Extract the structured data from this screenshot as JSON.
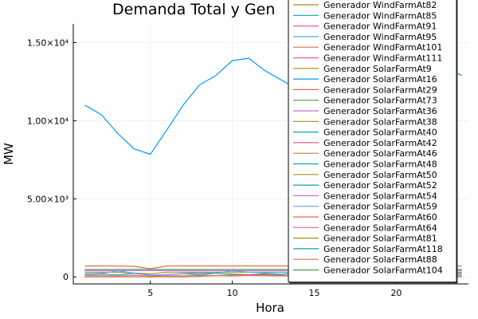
{
  "chart_data": {
    "type": "line",
    "title": "Demanda Total y Gen",
    "xlabel": "Hora",
    "ylabel": "MW",
    "xlim": [
      0.3,
      24.4
    ],
    "ylim": [
      -450,
      16200
    ],
    "x_ticks": [
      5,
      10,
      15,
      20
    ],
    "x_tick_labels": [
      "5",
      "10",
      "15",
      "20"
    ],
    "y_ticks": [
      0,
      5000,
      10000,
      15000
    ],
    "y_tick_labels": [
      "0",
      "5.00×10³",
      "1.00×10⁴",
      "1.50×10⁴"
    ],
    "grid": true,
    "legend_position": "top-right",
    "series": [
      {
        "color": "#009af9",
        "x": [
          1,
          2,
          3,
          4,
          5,
          6,
          7,
          8,
          9,
          10,
          11,
          12,
          13,
          14,
          15,
          16,
          17,
          18,
          19,
          20,
          21,
          22,
          23,
          24
        ],
        "y": [
          11000,
          10400,
          9200,
          8200,
          7850,
          9400,
          11000,
          12300,
          12900,
          13850,
          14000,
          13200,
          12600,
          12000,
          12400,
          12700,
          13000,
          13300,
          13500,
          13700,
          14000,
          13600,
          13300,
          12900
        ]
      },
      {
        "color": "#e26f46",
        "x": [
          1,
          2,
          3,
          4,
          5,
          6,
          7,
          8,
          9,
          10,
          11,
          12,
          13,
          14,
          15,
          16,
          17,
          18,
          19,
          20,
          21,
          22,
          23,
          24
        ],
        "y": [
          700,
          700,
          700,
          680,
          520,
          700,
          700,
          700,
          700,
          700,
          700,
          700,
          700,
          700,
          700,
          700,
          700,
          700,
          700,
          700,
          700,
          700,
          700,
          700
        ]
      },
      {
        "color": "#3da44d",
        "x": [
          1,
          2,
          3,
          4,
          5,
          6,
          7,
          8,
          9,
          10,
          11,
          12,
          13,
          14,
          15,
          16,
          17,
          18,
          19,
          20,
          21,
          22,
          23,
          24
        ],
        "y": [
          480,
          480,
          480,
          480,
          480,
          480,
          480,
          480,
          480,
          480,
          480,
          480,
          480,
          480,
          480,
          480,
          480,
          480,
          480,
          480,
          480,
          480,
          480,
          480
        ]
      },
      {
        "color": "#c271d2",
        "x": [
          1,
          2,
          3,
          4,
          5,
          6,
          7,
          8,
          9,
          10,
          11,
          12,
          13,
          14,
          15,
          16,
          17,
          18,
          19,
          20,
          21,
          22,
          23,
          24
        ],
        "y": [
          400,
          400,
          400,
          400,
          400,
          400,
          400,
          400,
          400,
          400,
          400,
          400,
          400,
          400,
          400,
          400,
          400,
          400,
          400,
          400,
          400,
          400,
          400,
          400
        ]
      },
      {
        "color": "#ac8d18",
        "x": [
          1,
          2,
          3,
          4,
          5,
          6,
          7,
          8,
          9,
          10,
          11,
          12,
          13,
          14,
          15,
          16,
          17,
          18,
          19,
          20,
          21,
          22,
          23,
          24
        ],
        "y": [
          300,
          300,
          300,
          250,
          200,
          300,
          300,
          300,
          300,
          300,
          300,
          300,
          300,
          300,
          300,
          300,
          300,
          300,
          300,
          300,
          300,
          300,
          300,
          300
        ]
      },
      {
        "color": "#00a9ad",
        "x": [
          1,
          2,
          3,
          4,
          5,
          6,
          7,
          8,
          9,
          10,
          11,
          12,
          13,
          14,
          15,
          16,
          17,
          18,
          19,
          20,
          21,
          22,
          23,
          24
        ],
        "y": [
          150,
          180,
          120,
          220,
          100,
          140,
          200,
          160,
          230,
          180,
          150,
          200,
          170,
          220,
          190,
          160,
          200,
          180,
          150,
          200,
          170,
          190,
          160,
          180
        ]
      },
      {
        "color": "#ed5d92",
        "x": [
          1,
          2,
          3,
          4,
          5,
          6,
          7,
          8,
          9,
          10,
          11,
          12,
          13,
          14,
          15,
          16,
          17,
          18,
          19,
          20,
          21,
          22,
          23,
          24
        ],
        "y": [
          60,
          80,
          50,
          90,
          40,
          70,
          60,
          100,
          80,
          60,
          90,
          70,
          60,
          80,
          50,
          70,
          90,
          60,
          80,
          70,
          60,
          90,
          70,
          80
        ]
      },
      {
        "color": "#c68225",
        "x": [
          1,
          2,
          3,
          4,
          5,
          6,
          7,
          8,
          9,
          10,
          11,
          12,
          13,
          14,
          15,
          16,
          17,
          18,
          19,
          20,
          21,
          22,
          23,
          24
        ],
        "y": [
          0,
          0,
          0,
          0,
          0,
          0,
          0,
          30,
          80,
          120,
          140,
          130,
          100,
          60,
          20,
          0,
          0,
          0,
          0,
          0,
          0,
          0,
          0,
          0
        ]
      },
      {
        "color": "#6b9ce8",
        "x": [
          1,
          2,
          3,
          4,
          5,
          6,
          7,
          8,
          9,
          10,
          11,
          12,
          13,
          14,
          15,
          16,
          17,
          18,
          19,
          20,
          21,
          22,
          23,
          24
        ],
        "y": [
          200,
          220,
          380,
          240,
          120,
          150,
          210,
          260,
          250,
          380,
          300,
          260,
          300,
          240,
          220,
          260,
          300,
          260,
          220,
          260,
          240,
          250,
          230,
          260
        ]
      }
    ],
    "legend": [
      {
        "label": "Generador WindFarmAt82",
        "color": "#ac8d18"
      },
      {
        "label": "Generador WindFarmAt85",
        "color": "#00a9ad"
      },
      {
        "label": "Generador WindFarmAt91",
        "color": "#ed5d92"
      },
      {
        "label": "Generador WindFarmAt95",
        "color": "#6b9ce8"
      },
      {
        "label": "Generador WindFarmAt101",
        "color": "#e26f46"
      },
      {
        "label": "Generador WindFarmAt111",
        "color": "#ed5d92"
      },
      {
        "label": "Generador SolarFarmAt9",
        "color": "#ac8d18"
      },
      {
        "label": "Generador SolarFarmAt16",
        "color": "#009af9"
      },
      {
        "label": "Generador SolarFarmAt29",
        "color": "#e26f46"
      },
      {
        "label": "Generador SolarFarmAt73",
        "color": "#3da44d"
      },
      {
        "label": "Generador SolarFarmAt36",
        "color": "#c271d2"
      },
      {
        "label": "Generador SolarFarmAt38",
        "color": "#ac8d18"
      },
      {
        "label": "Generador SolarFarmAt40",
        "color": "#00a9ad"
      },
      {
        "label": "Generador SolarFarmAt42",
        "color": "#ed5d92"
      },
      {
        "label": "Generador SolarFarmAt46",
        "color": "#c68225"
      },
      {
        "label": "Generador SolarFarmAt48",
        "color": "#00a9ad"
      },
      {
        "label": "Generador SolarFarmAt50",
        "color": "#ac8d18"
      },
      {
        "label": "Generador SolarFarmAt52",
        "color": "#00a9ad"
      },
      {
        "label": "Generador SolarFarmAt54",
        "color": "#c271d2"
      },
      {
        "label": "Generador SolarFarmAt59",
        "color": "#6b9ce8"
      },
      {
        "label": "Generador SolarFarmAt60",
        "color": "#e26f46"
      },
      {
        "label": "Generador SolarFarmAt64",
        "color": "#ed5d92"
      },
      {
        "label": "Generador SolarFarmAt81",
        "color": "#ac8d18"
      },
      {
        "label": "Generador SolarFarmAt118",
        "color": "#00a9ad"
      },
      {
        "label": "Generador SolarFarmAt88",
        "color": "#e26f46"
      },
      {
        "label": "Generador SolarFarmAt104",
        "color": "#3da44d"
      }
    ]
  }
}
